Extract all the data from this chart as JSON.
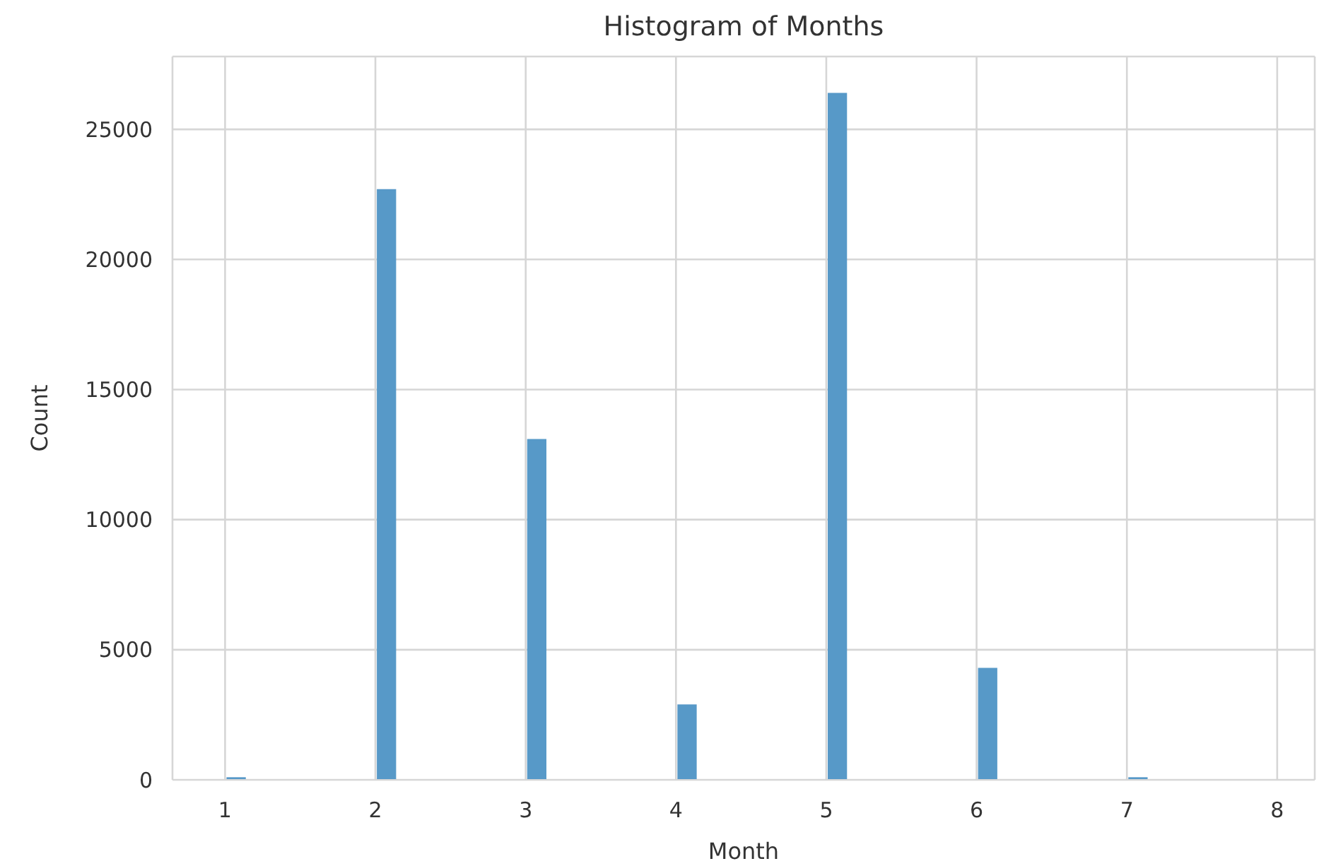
{
  "chart_data": {
    "type": "histogram",
    "title": "Histogram of Months",
    "xlabel": "Month",
    "ylabel": "Count",
    "color": "#5799c8",
    "bins": [
      1,
      1.143,
      1.286,
      1.429,
      1.571,
      1.714,
      1.857,
      2,
      2.143,
      2.286,
      2.429,
      2.571,
      2.714,
      2.857,
      3,
      3.143,
      3.286,
      3.429,
      3.571,
      3.714,
      3.857,
      4,
      4.143,
      4.286,
      4.429,
      4.571,
      4.714,
      4.857,
      5,
      5.143,
      5.286,
      5.429,
      5.571,
      5.714,
      5.857,
      6,
      6.143,
      6.286,
      6.429,
      6.571,
      6.714,
      6.857,
      7,
      7.143,
      7.286,
      7.429,
      7.571,
      7.714,
      7.857,
      8
    ],
    "values": [
      100,
      0,
      0,
      0,
      0,
      0,
      0,
      22700,
      0,
      0,
      0,
      0,
      0,
      0,
      13100,
      0,
      0,
      0,
      0,
      0,
      0,
      2900,
      0,
      0,
      0,
      0,
      0,
      0,
      26400,
      0,
      0,
      0,
      0,
      0,
      0,
      4300,
      0,
      0,
      0,
      0,
      0,
      0,
      100,
      0,
      0,
      0,
      0,
      0,
      0
    ],
    "xlim": [
      0.65,
      8.25
    ],
    "xticks": [
      1,
      2,
      3,
      4,
      5,
      6,
      7,
      8
    ],
    "ylim": [
      0,
      27800
    ],
    "yticks": [
      0,
      5000,
      10000,
      15000,
      20000,
      25000
    ],
    "grid": true
  }
}
